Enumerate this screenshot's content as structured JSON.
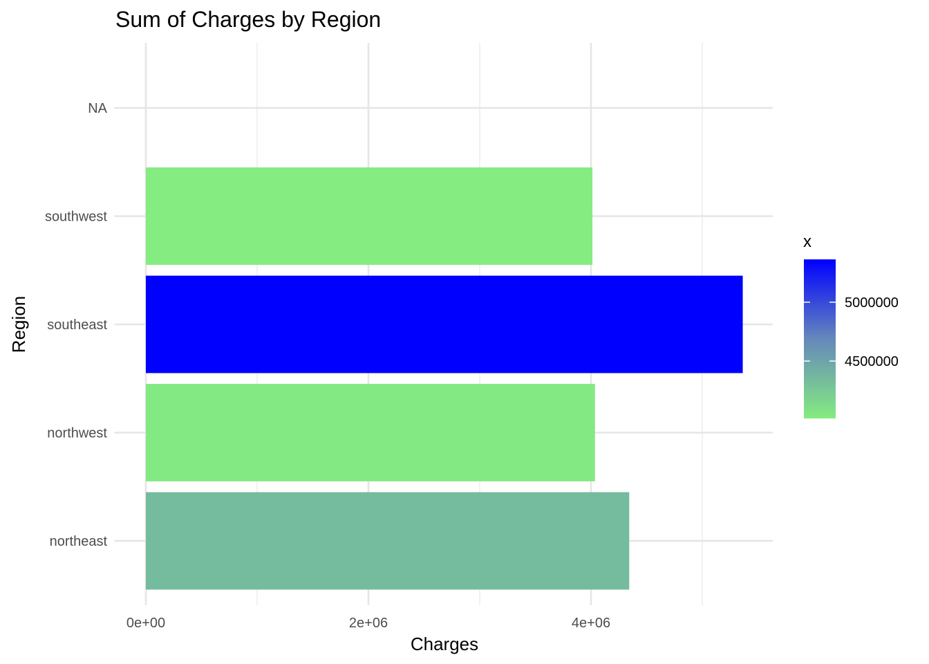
{
  "chart_data": {
    "type": "bar",
    "orientation": "horizontal",
    "title": "Sum of Charges by Region",
    "xlabel": "Charges",
    "ylabel": "Region",
    "categories": [
      "northeast",
      "northwest",
      "southeast",
      "southwest",
      "NA"
    ],
    "values": [
      4343669,
      4035712,
      5363690,
      4012755,
      null
    ],
    "xlim": [
      0,
      5600000
    ],
    "x_ticks": [
      0,
      2000000,
      4000000
    ],
    "x_tick_labels": [
      "0e+00",
      "2e+06",
      "4e+06"
    ],
    "grid": true,
    "legend": {
      "title": "x",
      "placement": "right",
      "type": "colorbar",
      "range": [
        4012755,
        5363690
      ],
      "ticks": [
        4500000,
        5000000
      ],
      "tick_labels": [
        "4500000",
        "5000000"
      ],
      "low_color": "#84EC80",
      "high_color": "#0000FF"
    }
  }
}
